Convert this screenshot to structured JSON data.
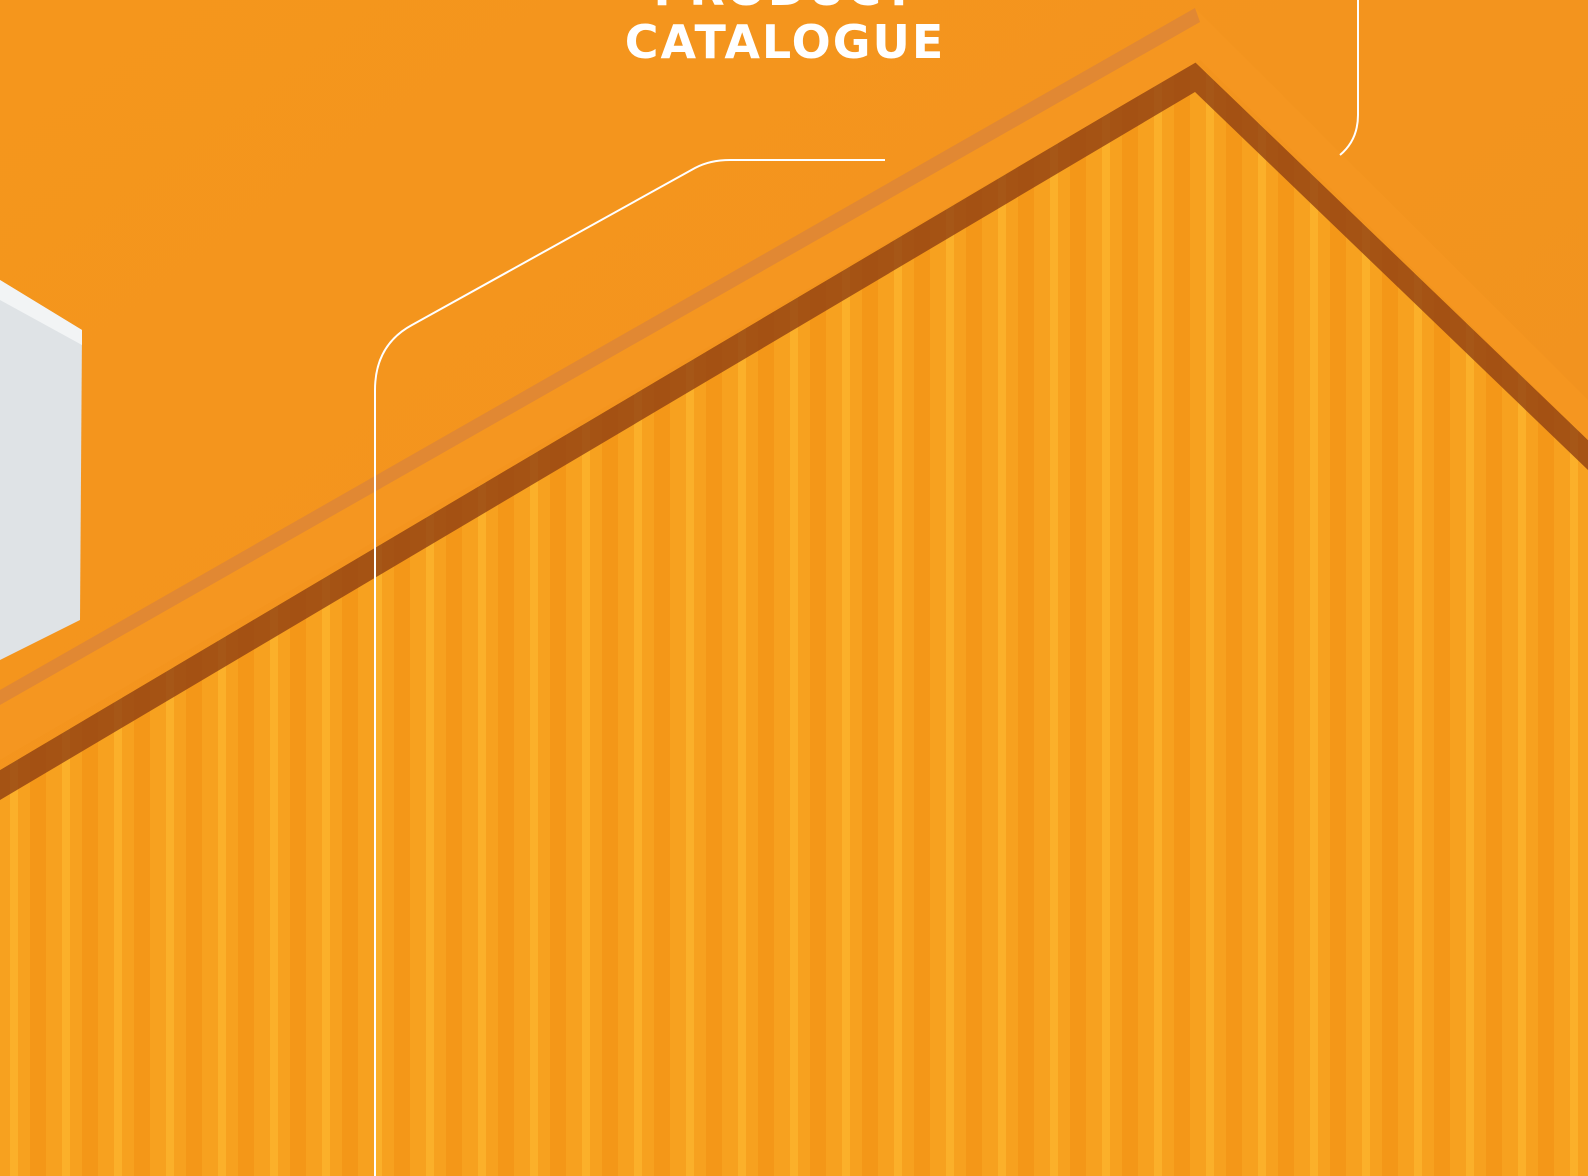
{
  "cover": {
    "title_lines": [
      "PRODUCT",
      "CATALOGUE"
    ]
  }
}
